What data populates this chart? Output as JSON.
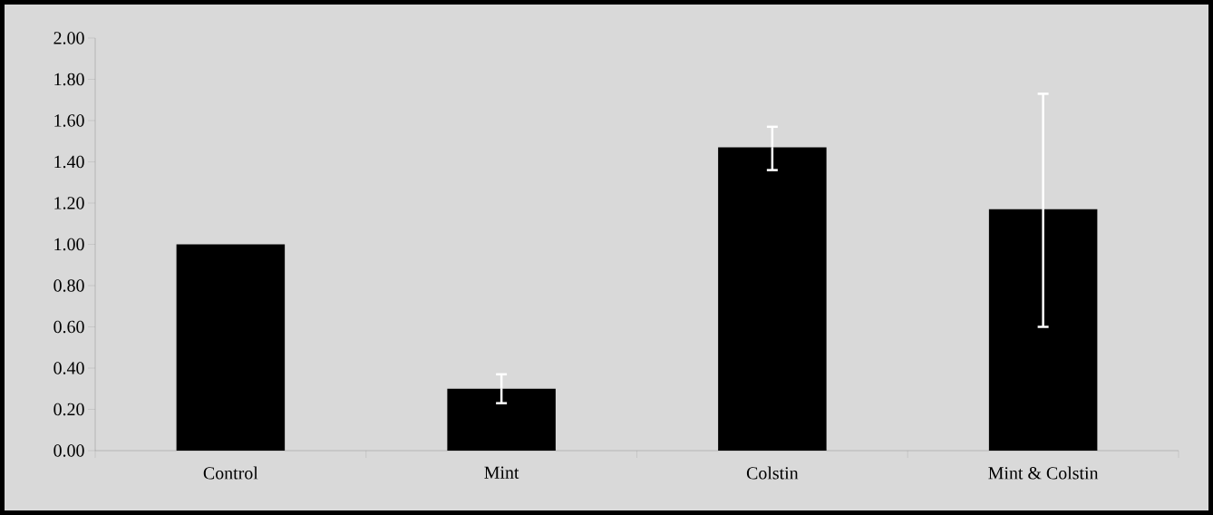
{
  "chart_data": {
    "type": "bar",
    "categories": [
      "Control",
      "Mint",
      "Colstin",
      "Mint & Colstin"
    ],
    "values": [
      1.0,
      0.3,
      1.47,
      1.17
    ],
    "errors": [
      null,
      [
        0.23,
        0.37
      ],
      [
        1.36,
        1.57
      ],
      [
        0.6,
        1.73
      ]
    ],
    "color": "#000000",
    "ylim": [
      0,
      2
    ],
    "yticks": [
      {
        "value": 0,
        "label": "0.00"
      },
      {
        "value": 0.2,
        "label": "0.20"
      },
      {
        "value": 0.4,
        "label": "0.40"
      },
      {
        "value": 0.6,
        "label": "0.60"
      },
      {
        "value": 0.8,
        "label": "0.80"
      },
      {
        "value": 1.0,
        "label": "1.00"
      },
      {
        "value": 1.2,
        "label": "1.20"
      },
      {
        "value": 1.4,
        "label": "1.40"
      },
      {
        "value": 1.6,
        "label": "1.60"
      },
      {
        "value": 1.8,
        "label": "1.80"
      },
      {
        "value": 2.0,
        "label": "2.00"
      }
    ],
    "grid": false
  }
}
